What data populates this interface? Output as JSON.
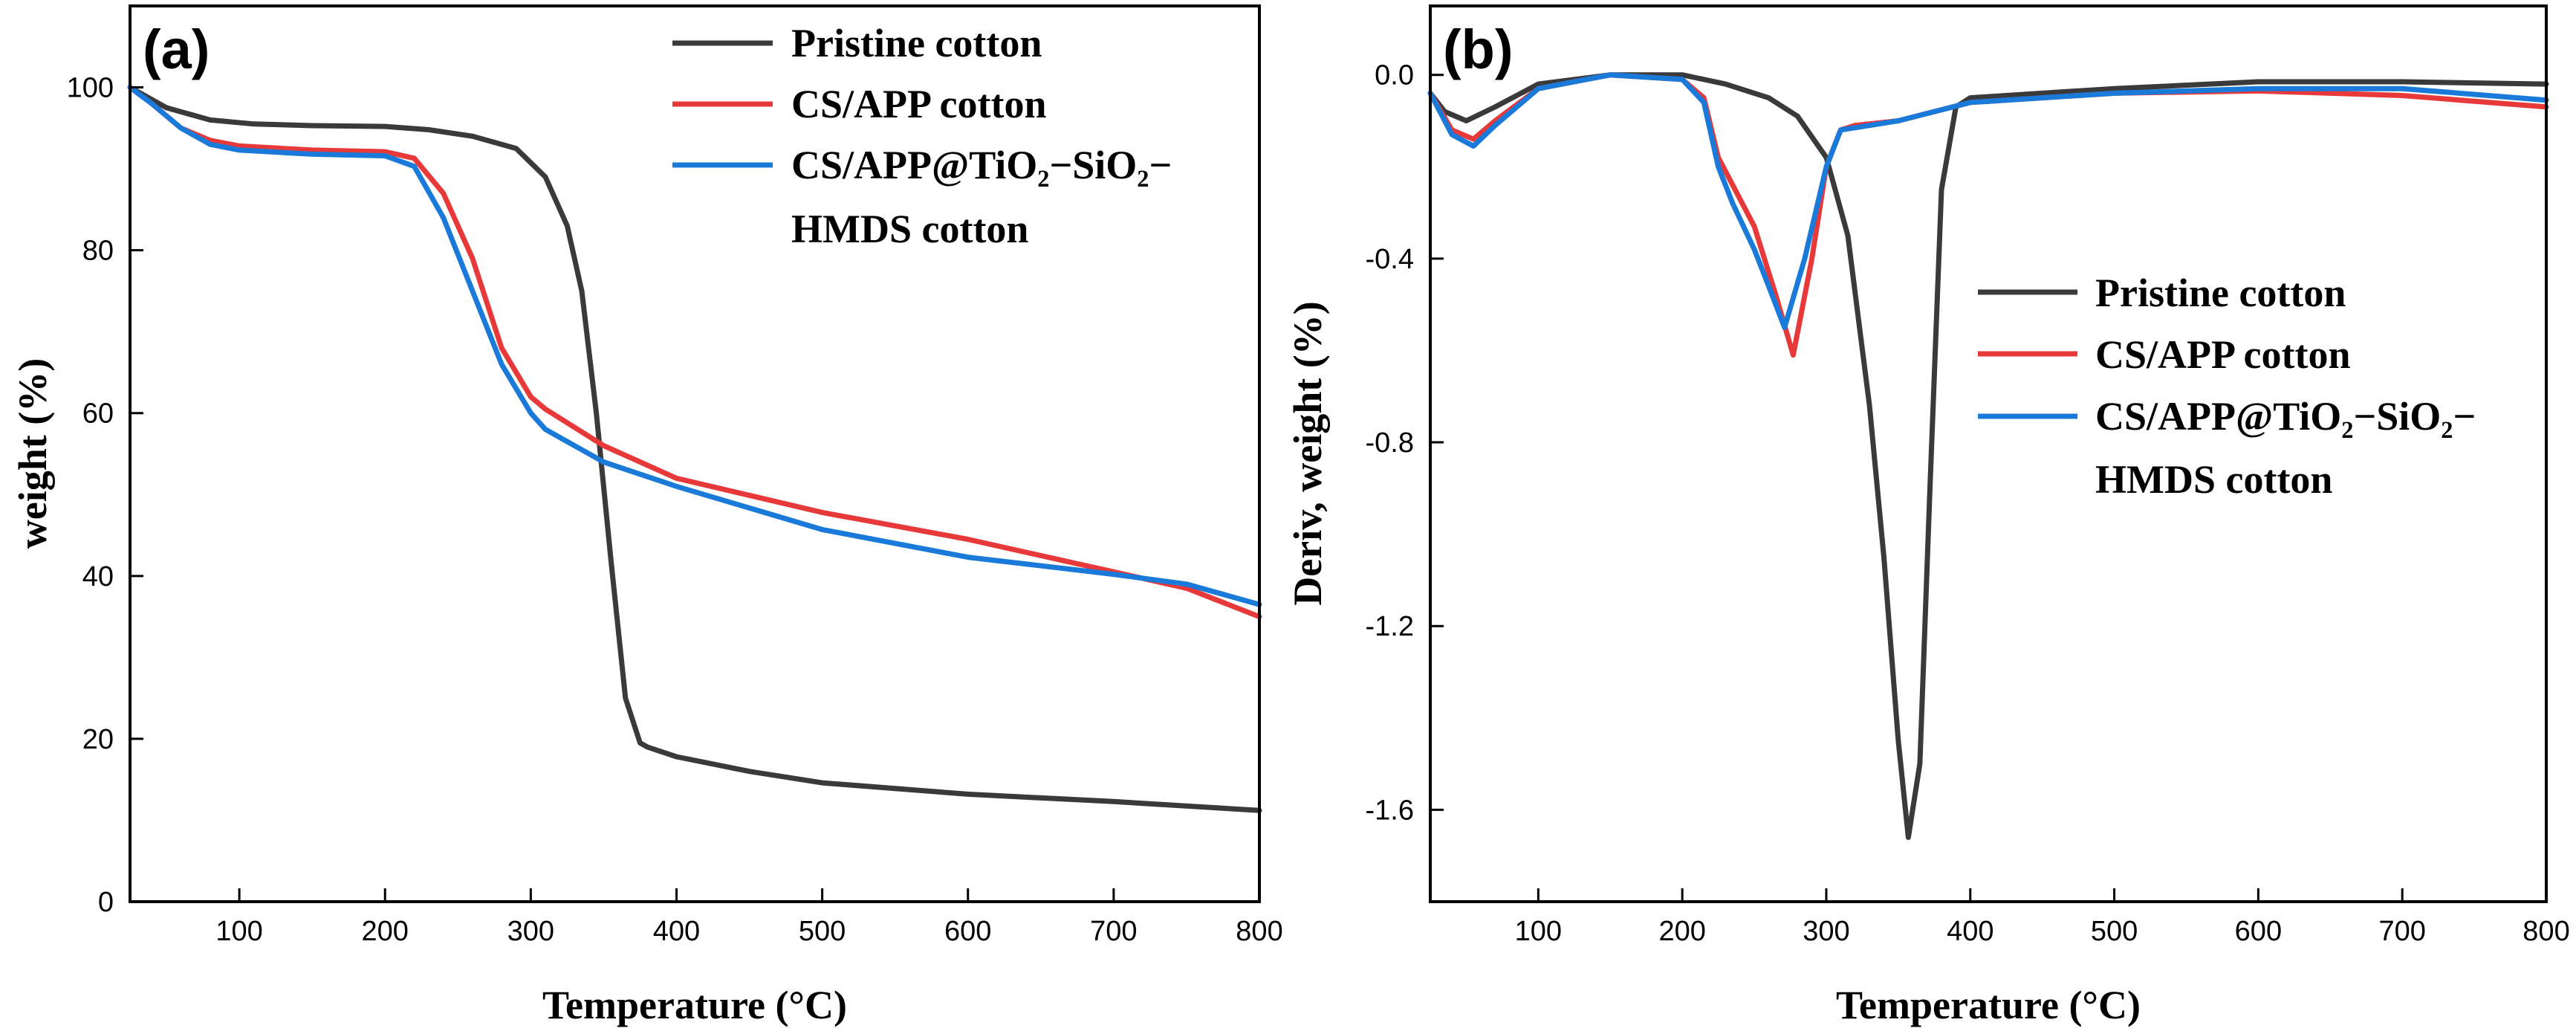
{
  "chart_data": [
    {
      "panel_label": "(a)",
      "type": "line",
      "xlabel": "Temperature (°C)",
      "ylabel": "weight (%)",
      "xlim": [
        25,
        800
      ],
      "ylim": [
        0,
        110
      ],
      "xticks": [
        "100",
        "200",
        "300",
        "400",
        "500",
        "600",
        "700",
        "800"
      ],
      "yticks": [
        "0",
        "20",
        "40",
        "60",
        "80",
        "100"
      ],
      "legend_position": "top-right",
      "series": [
        {
          "name": "Pristine cotton",
          "color": "#3a3a3a",
          "x": [
            25,
            50,
            80,
            110,
            150,
            200,
            230,
            260,
            290,
            310,
            325,
            335,
            345,
            355,
            365,
            375,
            380,
            400,
            450,
            500,
            600,
            700,
            800
          ],
          "y": [
            100,
            97.5,
            96,
            95.5,
            95.3,
            95.2,
            94.8,
            94,
            92.5,
            89,
            83,
            75,
            60,
            42,
            25,
            19.5,
            19,
            17.8,
            16,
            14.6,
            13.2,
            12.3,
            11.2
          ]
        },
        {
          "name": "CS/APP cotton",
          "color": "#e8393a",
          "x": [
            25,
            40,
            60,
            80,
            100,
            150,
            200,
            220,
            240,
            260,
            280,
            300,
            310,
            350,
            400,
            500,
            600,
            700,
            750,
            800
          ],
          "y": [
            100,
            98,
            95,
            93.5,
            92.8,
            92.3,
            92.1,
            91.3,
            87,
            79,
            68,
            62,
            60.5,
            56,
            52,
            47.8,
            44.5,
            40.5,
            38.5,
            35
          ]
        },
        {
          "name": "CS/APP@TiO₂−SiO₂−",
          "name_line2": "HMDS cotton",
          "color": "#1a7ad9",
          "x": [
            25,
            40,
            60,
            80,
            100,
            150,
            200,
            220,
            240,
            260,
            280,
            300,
            310,
            350,
            400,
            500,
            600,
            700,
            750,
            800
          ],
          "y": [
            100,
            98,
            95,
            93,
            92.3,
            91.8,
            91.6,
            90.3,
            84,
            75,
            66,
            60,
            58,
            54,
            51,
            45.7,
            42.3,
            40.2,
            39,
            36.5
          ]
        }
      ]
    },
    {
      "panel_label": "(b)",
      "type": "line",
      "xlabel": "Temperature (°C)",
      "ylabel": "Deriv, weight (%)",
      "xlim": [
        25,
        800
      ],
      "ylim": [
        -1.8,
        0.15
      ],
      "xticks": [
        "100",
        "200",
        "300",
        "400",
        "500",
        "600",
        "700",
        "800"
      ],
      "yticks": [
        "0.0",
        "-0.4",
        "-0.8",
        "-1.2",
        "-1.6"
      ],
      "legend_position": "center-right",
      "series": [
        {
          "name": "Pristine cotton",
          "color": "#3a3a3a",
          "x": [
            25,
            35,
            50,
            70,
            100,
            150,
            200,
            230,
            260,
            280,
            300,
            315,
            330,
            340,
            350,
            357,
            365,
            372,
            380,
            390,
            400,
            500,
            600,
            700,
            800
          ],
          "y": [
            -0.04,
            -0.08,
            -0.1,
            -0.07,
            -0.02,
            0.0,
            0.0,
            -0.02,
            -0.05,
            -0.09,
            -0.18,
            -0.35,
            -0.72,
            -1.05,
            -1.45,
            -1.66,
            -1.5,
            -0.9,
            -0.25,
            -0.07,
            -0.05,
            -0.03,
            -0.015,
            -0.015,
            -0.02
          ]
        },
        {
          "name": "CS/APP cotton",
          "color": "#e8393a",
          "x": [
            25,
            40,
            55,
            70,
            100,
            150,
            200,
            215,
            225,
            235,
            250,
            265,
            277,
            290,
            300,
            310,
            320,
            350,
            400,
            500,
            600,
            700,
            800
          ],
          "y": [
            -0.04,
            -0.12,
            -0.14,
            -0.1,
            -0.03,
            0.0,
            -0.01,
            -0.05,
            -0.18,
            -0.24,
            -0.33,
            -0.48,
            -0.61,
            -0.4,
            -0.2,
            -0.12,
            -0.11,
            -0.1,
            -0.06,
            -0.04,
            -0.035,
            -0.045,
            -0.07
          ]
        },
        {
          "name": "CS/APP@TiO₂−SiO₂−",
          "name_line2": "HMDS cotton",
          "color": "#1a7ad9",
          "x": [
            25,
            40,
            55,
            70,
            100,
            150,
            200,
            215,
            225,
            235,
            250,
            260,
            271,
            285,
            300,
            310,
            320,
            350,
            400,
            500,
            600,
            700,
            800
          ],
          "y": [
            -0.04,
            -0.13,
            -0.155,
            -0.11,
            -0.03,
            0.0,
            -0.01,
            -0.06,
            -0.2,
            -0.28,
            -0.38,
            -0.46,
            -0.55,
            -0.4,
            -0.2,
            -0.12,
            -0.115,
            -0.1,
            -0.06,
            -0.04,
            -0.03,
            -0.03,
            -0.055
          ]
        }
      ]
    }
  ]
}
